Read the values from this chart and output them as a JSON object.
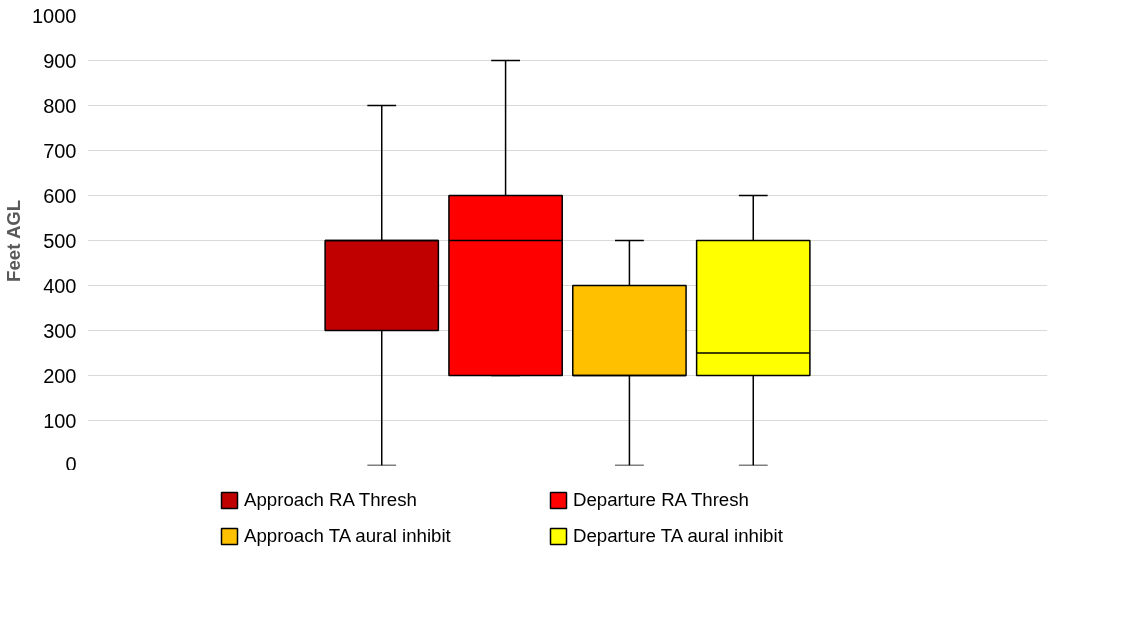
{
  "chart_data": {
    "type": "box",
    "ylabel": "Feet AGL",
    "categories": [
      null
    ],
    "ylim": [
      0,
      1000
    ],
    "yticks": [
      0,
      100,
      200,
      300,
      400,
      500,
      600,
      700,
      800,
      900,
      1000
    ],
    "grid": "y",
    "legend": "bottom",
    "tick_labels": "y",
    "series": [
      {
        "name": "Approach RA Thresh",
        "color": "#c00000",
        "boxes": [
          {
            "low": 0,
            "q1": 300,
            "median": 500,
            "q3": 500,
            "high": 800
          }
        ]
      },
      {
        "name": "Departure RA Thresh",
        "color": "#ff0000",
        "boxes": [
          {
            "low": 200,
            "q1": 200,
            "median": 500,
            "q3": 600,
            "high": 900
          }
        ]
      },
      {
        "name": "Approach TA aural inhibit",
        "color": "#ffc000",
        "boxes": [
          {
            "low": 0,
            "q1": 200,
            "median": 200,
            "q3": 400,
            "high": 500
          }
        ]
      },
      {
        "name": "Departure TA aural inhibit",
        "color": "#ffff00",
        "boxes": [
          {
            "low": 0,
            "q1": 200,
            "median": 250,
            "q3": 500,
            "high": 600
          }
        ]
      }
    ]
  }
}
